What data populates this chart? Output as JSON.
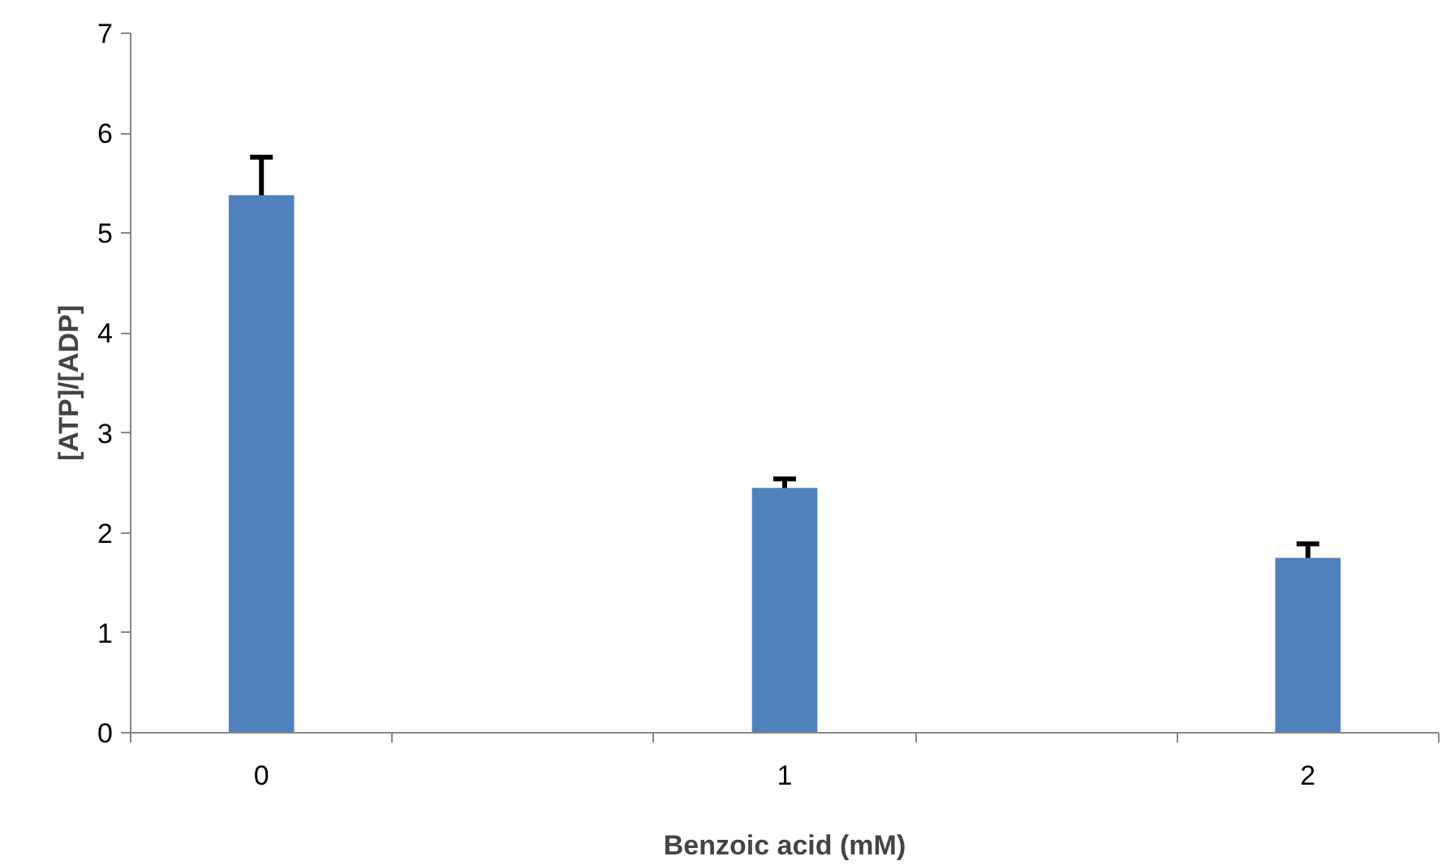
{
  "chart_data": {
    "type": "bar",
    "xlabel": "Benzoic acid (mM)",
    "ylabel": "[ATP]/[ADP]",
    "categories": [
      "0",
      null,
      "1",
      null,
      "2"
    ],
    "values": [
      5.38,
      null,
      2.45,
      null,
      1.75
    ],
    "errors": [
      0.38,
      null,
      0.09,
      null,
      0.14
    ],
    "color": "#4f81bd",
    "ylim": [
      0,
      7
    ],
    "yticks": [
      0,
      1,
      2,
      3,
      4,
      5,
      6,
      7
    ],
    "grid": false
  }
}
